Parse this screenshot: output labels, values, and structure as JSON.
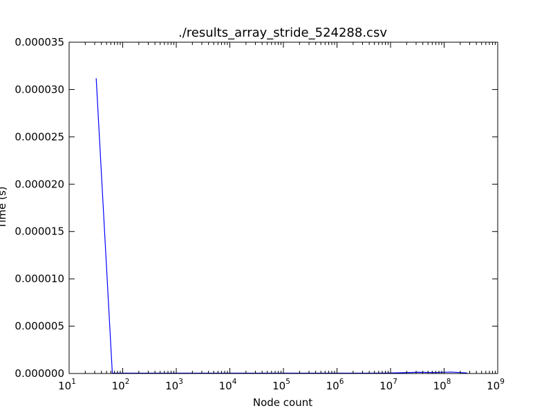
{
  "chart_data": {
    "type": "line",
    "title": "./results_array_stride_524288.csv",
    "xlabel": "Node count",
    "ylabel": "Time (s)",
    "x_scale": "log",
    "x_base": "10",
    "xlim": [
      10,
      1000000000
    ],
    "ylim": [
      0,
      3.5e-05
    ],
    "x_ticks": [
      {
        "value": 10,
        "exponent": "1"
      },
      {
        "value": 100,
        "exponent": "2"
      },
      {
        "value": 1000,
        "exponent": "3"
      },
      {
        "value": 10000,
        "exponent": "4"
      },
      {
        "value": 100000,
        "exponent": "5"
      },
      {
        "value": 1000000,
        "exponent": "6"
      },
      {
        "value": 10000000,
        "exponent": "7"
      },
      {
        "value": 100000000,
        "exponent": "8"
      },
      {
        "value": 1000000000,
        "exponent": "9"
      }
    ],
    "y_ticks": [
      {
        "value": 0,
        "label": "0.000000"
      },
      {
        "value": 5e-06,
        "label": "0.000005"
      },
      {
        "value": 1e-05,
        "label": "0.000010"
      },
      {
        "value": 1.5e-05,
        "label": "0.000015"
      },
      {
        "value": 2e-05,
        "label": "0.000020"
      },
      {
        "value": 2.5e-05,
        "label": "0.000025"
      },
      {
        "value": 3e-05,
        "label": "0.000030"
      },
      {
        "value": 3.5e-05,
        "label": "0.000035"
      }
    ],
    "grid": false,
    "series": [
      {
        "color": "#0000ff",
        "x": [
          32,
          64,
          128,
          256,
          512,
          1024,
          2048,
          4096,
          8192,
          16384,
          32768,
          65536,
          131072,
          262144,
          524288,
          1048576,
          2097152,
          4194304,
          8388608,
          16777216,
          33554432,
          67108864,
          134217728,
          268435456
        ],
        "y": [
          3.12e-05,
          5e-08,
          4e-08,
          4e-08,
          4e-08,
          4e-08,
          4e-08,
          4e-08,
          4e-08,
          4e-08,
          4e-08,
          4e-08,
          4e-08,
          4e-08,
          4e-08,
          4e-08,
          4e-08,
          4e-08,
          5e-08,
          8e-08,
          1.3e-07,
          1e-07,
          1.5e-07,
          6e-08
        ]
      }
    ]
  }
}
